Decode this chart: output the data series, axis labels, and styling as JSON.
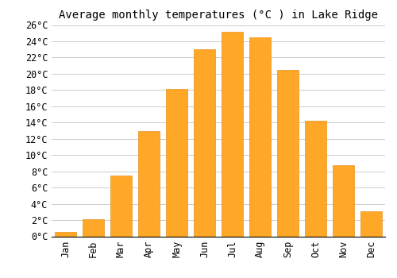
{
  "title": "Average monthly temperatures (°C ) in Lake Ridge",
  "months": [
    "Jan",
    "Feb",
    "Mar",
    "Apr",
    "May",
    "Jun",
    "Jul",
    "Aug",
    "Sep",
    "Oct",
    "Nov",
    "Dec"
  ],
  "values": [
    0.5,
    2.1,
    7.5,
    13.0,
    18.1,
    23.0,
    25.2,
    24.5,
    20.5,
    14.2,
    8.7,
    3.1
  ],
  "bar_color": "#FFA726",
  "bar_edge_color": "#E69020",
  "background_color": "#ffffff",
  "grid_color": "#cccccc",
  "ylim": [
    0,
    26
  ],
  "ytick_step": 2,
  "title_fontsize": 10,
  "tick_fontsize": 8.5,
  "font_family": "monospace",
  "bar_width": 0.75
}
